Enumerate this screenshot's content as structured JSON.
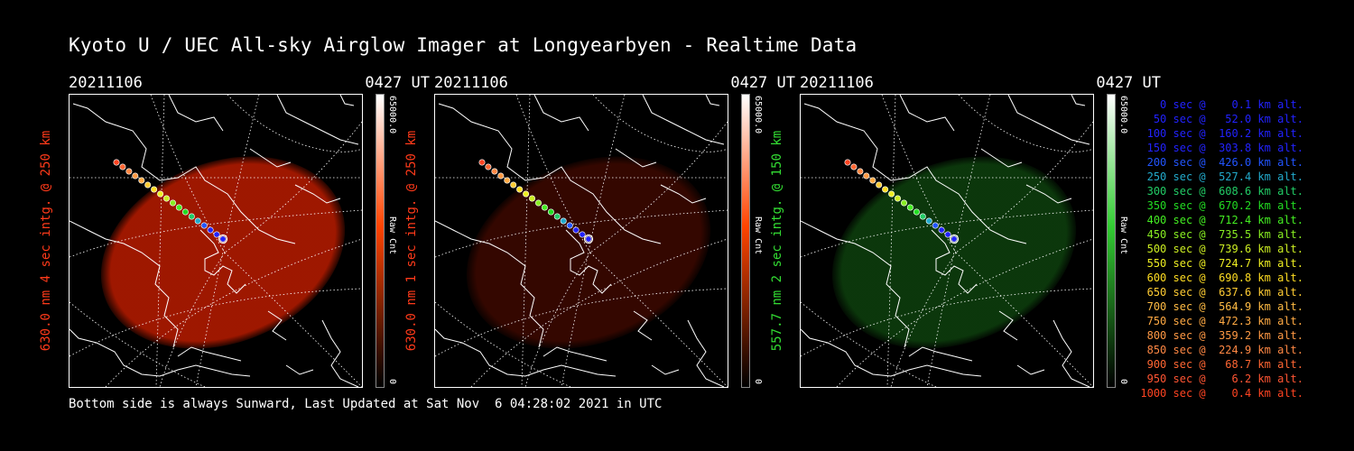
{
  "title": "Kyoto U / UEC All-sky Airglow Imager at Longyearbyen - Realtime Data",
  "footer": "Bottom side is always Sunward, Last Updated at Sat Nov  6 04:28:02 2021 in UTC",
  "panels": [
    {
      "date": "20211106",
      "time": "0427 UT",
      "ylabel": "630.0 nm 4 sec intg. @ 250 km",
      "label_color": "#ff3a1a",
      "bar_top_color": "#ffffff",
      "bar_mid_color": "#ff4400",
      "bar_bottom_color": "#000000",
      "bar_max": "65000.0",
      "bar_unit": "Raw Cnt",
      "bar_min": "0",
      "glow_color": "#b01a00",
      "glow_opacity": 0.9
    },
    {
      "date": "20211106",
      "time": "0427 UT",
      "ylabel": "630.0 nm 1 sec intg. @ 250 km",
      "label_color": "#ff3a1a",
      "bar_top_color": "#ffffff",
      "bar_mid_color": "#ff4400",
      "bar_bottom_color": "#000000",
      "bar_max": "65000.0",
      "bar_unit": "Raw Cnt",
      "bar_min": "0",
      "glow_color": "#3a0800",
      "glow_opacity": 0.9
    },
    {
      "date": "20211106",
      "time": "0427 UT",
      "ylabel": "557.7 nm 2 sec intg. @ 150 km",
      "label_color": "#33dd33",
      "bar_top_color": "#ffffff",
      "bar_mid_color": "#33cc33",
      "bar_bottom_color": "#000000",
      "bar_max": "65000.0",
      "bar_unit": "Raw Cnt",
      "bar_min": "0",
      "glow_color": "#0c3a0c",
      "glow_opacity": 0.95
    }
  ],
  "legend": [
    {
      "text": "0 sec @    0.1 km alt.",
      "color": "#2222ff"
    },
    {
      "text": "50 sec @   52.0 km alt.",
      "color": "#2222ff"
    },
    {
      "text": "100 sec @  160.2 km alt.",
      "color": "#2222ff"
    },
    {
      "text": "150 sec @  303.8 km alt.",
      "color": "#2222ff"
    },
    {
      "text": "200 sec @  426.0 km alt.",
      "color": "#2255ff"
    },
    {
      "text": "250 sec @  527.4 km alt.",
      "color": "#22aacc"
    },
    {
      "text": "300 sec @  608.6 km alt.",
      "color": "#22cc66"
    },
    {
      "text": "350 sec @  670.2 km alt.",
      "color": "#22dd22"
    },
    {
      "text": "400 sec @  712.4 km alt.",
      "color": "#44ee22"
    },
    {
      "text": "450 sec @  735.5 km alt.",
      "color": "#88ee22"
    },
    {
      "text": "500 sec @  739.6 km alt.",
      "color": "#ccee22"
    },
    {
      "text": "550 sec @  724.7 km alt.",
      "color": "#eeee22"
    },
    {
      "text": "600 sec @  690.8 km alt.",
      "color": "#ffdd22"
    },
    {
      "text": "650 sec @  637.6 km alt.",
      "color": "#ffcc33"
    },
    {
      "text": "700 sec @  564.9 km alt.",
      "color": "#ffbb44"
    },
    {
      "text": "750 sec @  472.3 km alt.",
      "color": "#ffaa44"
    },
    {
      "text": "800 sec @  359.2 km alt.",
      "color": "#ff9944"
    },
    {
      "text": "850 sec @  224.9 km alt.",
      "color": "#ff8844"
    },
    {
      "text": "900 sec @   68.7 km alt.",
      "color": "#ff6633"
    },
    {
      "text": "950 sec @    6.2 km alt.",
      "color": "#ff5533"
    },
    {
      "text": "1000 sec @    0.4 km alt.",
      "color": "#ff4422"
    }
  ],
  "trajectory_colors": [
    "#ff4422",
    "#ff6633",
    "#ff8844",
    "#ff9944",
    "#ffaa44",
    "#ffcc33",
    "#ffdd22",
    "#eeee22",
    "#ccee22",
    "#88ee22",
    "#44ee22",
    "#22dd22",
    "#22cc66",
    "#22aacc",
    "#2255ff",
    "#2222ff",
    "#2222ff",
    "#2222ff"
  ]
}
